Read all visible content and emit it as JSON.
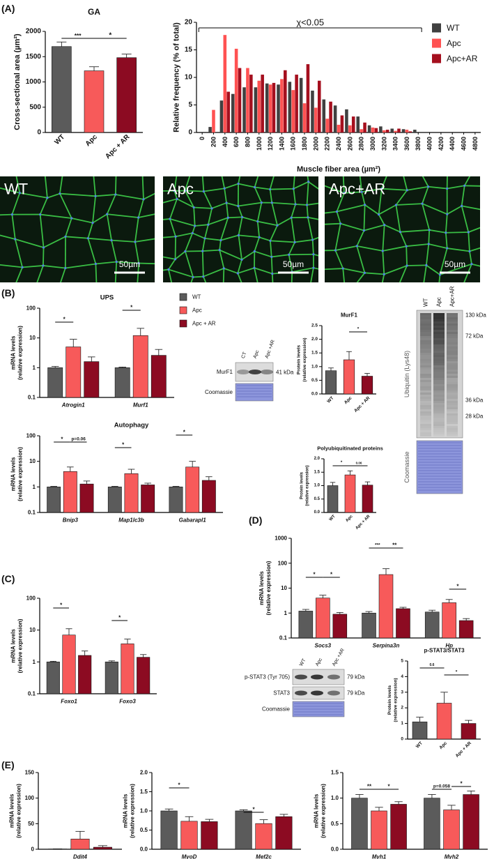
{
  "figure": {
    "panels": [
      "(A)",
      "(B)",
      "(C)",
      "(D)",
      "(E)"
    ],
    "images": [
      {
        "label": "WT",
        "scale": "50µm"
      },
      {
        "label": "Apc",
        "scale": "50µm"
      },
      {
        "label": "Apc+AR",
        "scale": "50µm"
      }
    ],
    "blots": [
      {
        "lanes": [
          "CT",
          "Apc",
          "Apc +AR"
        ],
        "rows": [
          "MurF1",
          "Coomassie"
        ],
        "sizes": [
          "41 kDa"
        ]
      },
      {
        "lanes": [
          "WT",
          "Apc",
          "Apc+AR"
        ],
        "rows": [
          "Ubiquitin (Lys48)",
          "Coomassie"
        ],
        "sizes": [
          "130 kDa",
          "72 kDa",
          "36 kDa",
          "28 kDa"
        ]
      },
      {
        "lanes": [
          "WT",
          "Apc",
          "Apc +AR"
        ],
        "rows": [
          "p-STAT3 (Tyr 705)",
          "STAT3",
          "Coomassie"
        ],
        "sizes": [
          "79 kDa",
          "79 kDa"
        ]
      }
    ]
  },
  "chart_data": [
    {
      "type": "bar",
      "title": "GA",
      "ylabel": "Cross-sectional area (µm²)",
      "categories": [
        "WT",
        "Apc",
        "Apc + AR"
      ],
      "values": [
        1700,
        1220,
        1480
      ],
      "errors": [
        90,
        80,
        70
      ],
      "colors": [
        "#5b5b5b",
        "#f75a5a",
        "#8c0b22"
      ],
      "ylim": [
        0,
        2000
      ],
      "yticks": [
        0,
        500,
        1000,
        1500,
        2000
      ],
      "annotations": [
        "***",
        "*"
      ]
    },
    {
      "type": "bar",
      "ylabel": "Relative frequency (% of total)",
      "xlabel": "Muscle fiber area (µm²)",
      "categories": [
        "0",
        "200",
        "400",
        "600",
        "800",
        "1000",
        "1200",
        "1400",
        "1600",
        "1800",
        "2000",
        "2200",
        "2400",
        "2600",
        "2800",
        "3000",
        "3200",
        "3400",
        "3600",
        "3800",
        "4000",
        "4200",
        "4400",
        "4600",
        "4800"
      ],
      "series": [
        {
          "name": "WT",
          "color": "#404040",
          "values": [
            0,
            1,
            5.8,
            7,
            8.2,
            8.2,
            8.9,
            8.7,
            9.2,
            9.9,
            7.6,
            6,
            4.9,
            4.2,
            2.9,
            1.3,
            1.1,
            0.7,
            0.6,
            0.5,
            0,
            0,
            0,
            0,
            0
          ]
        },
        {
          "name": "Apc",
          "color": "#ff5252",
          "values": [
            0,
            4.1,
            17.7,
            15.2,
            11.7,
            9.4,
            8.7,
            9.7,
            7.7,
            5.3,
            4.5,
            2.5,
            1.4,
            1.3,
            0.6,
            0.9,
            0.4,
            0.3,
            0.5,
            0,
            0,
            0,
            0,
            0,
            0
          ]
        },
        {
          "name": "Apc+AR",
          "color": "#a50f1e",
          "values": [
            0,
            0,
            7.4,
            11.7,
            10.5,
            10.5,
            9,
            11.3,
            10.5,
            12.4,
            9.4,
            5.6,
            3.1,
            2.9,
            1.8,
            0.8,
            0.5,
            0.7,
            0.2,
            0,
            0,
            0,
            0,
            0,
            0
          ]
        }
      ],
      "ylim": [
        0,
        20
      ],
      "yticks": [
        0,
        5,
        10,
        15,
        20
      ],
      "legend": "top-right",
      "annotations": [
        "χ<0.05"
      ]
    },
    {
      "type": "bar",
      "title": "UPS",
      "ylabel": [
        "mRNA levels",
        "(relative expression)"
      ],
      "categories": [
        "Atrogin1",
        "Murf1"
      ],
      "series": [
        {
          "name": "WT",
          "color": "#5b5b5b",
          "values": [
            1,
            1
          ],
          "errors": [
            0.1,
            0.05
          ]
        },
        {
          "name": "Apc",
          "color": "#f75a5a",
          "values": [
            5,
            12
          ],
          "errors": [
            4,
            9
          ]
        },
        {
          "name": "Apc + AR",
          "color": "#8c0b22",
          "values": [
            1.6,
            2.6
          ],
          "errors": [
            0.7,
            1.5
          ]
        }
      ],
      "log": true,
      "ylim": [
        0.1,
        100
      ],
      "yticks": [
        0.1,
        1,
        10,
        100
      ],
      "legend": "top-right",
      "annotations": [
        "*",
        "*"
      ]
    },
    {
      "type": "bar",
      "title": "MurF1",
      "ylabel": [
        "Protein levels",
        "(relative expression)"
      ],
      "categories": [
        "WT",
        "Apc",
        "Apc + AR"
      ],
      "values": [
        0.85,
        1.25,
        0.65
      ],
      "errors": [
        0.1,
        0.3,
        0.1
      ],
      "colors": [
        "#5b5b5b",
        "#f75a5a",
        "#8c0b22"
      ],
      "ylim": [
        0,
        2.5
      ],
      "yticks": [
        {
          "value": 0,
          "label": "0.0"
        },
        {
          "value": 0.5,
          "label": "0.5"
        },
        {
          "value": 1,
          "label": "1.0"
        },
        {
          "value": 1.5,
          "label": "1.5"
        },
        {
          "value": 2,
          "label": "2.0"
        },
        {
          "value": 2.5,
          "label": "2.5"
        }
      ],
      "annotations": [
        "*"
      ]
    },
    {
      "type": "bar",
      "title": "Autophagy",
      "ylabel": [
        "mRNA levels",
        "(relative expression)"
      ],
      "categories": [
        "Bnip3",
        "Map1lc3b",
        "Gabarapl1"
      ],
      "series": [
        {
          "color": "#5b5b5b",
          "values": [
            1,
            1,
            1
          ],
          "errors": [
            0.05,
            0.05,
            0.05
          ]
        },
        {
          "color": "#f75a5a",
          "values": [
            4,
            3.3,
            6
          ],
          "errors": [
            2,
            1.6,
            4
          ]
        },
        {
          "color": "#8c0b22",
          "values": [
            1.3,
            1.2,
            1.8
          ],
          "errors": [
            0.4,
            0.2,
            0.7
          ]
        }
      ],
      "log": true,
      "ylim": [
        0.1,
        100
      ],
      "yticks": [
        0.1,
        1,
        10,
        100
      ],
      "annotations": [
        "*",
        "p=0.06",
        "*",
        "*"
      ]
    },
    {
      "type": "bar",
      "title": "Polyubiquitinated proteins",
      "ylabel": [
        "Protein levels",
        "(relative expression)"
      ],
      "categories": [
        "WT",
        "Apc",
        "Apc + AR"
      ],
      "values": [
        1,
        1.4,
        1.02
      ],
      "errors": [
        0.12,
        0.15,
        0.12
      ],
      "colors": [
        "#5b5b5b",
        "#f75a5a",
        "#8c0b22"
      ],
      "ylim": [
        0,
        2
      ],
      "yticks": [
        {
          "value": 0,
          "label": "0.0"
        },
        {
          "value": 0.5,
          "label": "0.5"
        },
        {
          "value": 1,
          "label": "1.0"
        },
        {
          "value": 1.5,
          "label": "1.5"
        },
        {
          "value": 2,
          "label": "2.0"
        }
      ],
      "annotations": [
        "*",
        "0.06"
      ]
    },
    {
      "type": "bar",
      "ylabel": [
        "mRNA levels",
        "(relative expression)"
      ],
      "categories": [
        "Foxo1",
        "Foxo3"
      ],
      "series": [
        {
          "color": "#5b5b5b",
          "values": [
            1,
            1
          ],
          "errors": [
            0.05,
            0.08
          ]
        },
        {
          "color": "#f75a5a",
          "values": [
            7,
            3.7
          ],
          "errors": [
            4,
            1.5
          ]
        },
        {
          "color": "#8c0b22",
          "values": [
            1.6,
            1.4
          ],
          "errors": [
            0.6,
            0.3
          ]
        }
      ],
      "log": true,
      "ylim": [
        0.1,
        100
      ],
      "yticks": [
        0.1,
        1,
        10,
        100
      ],
      "annotations": [
        "*",
        "*"
      ]
    },
    {
      "type": "bar",
      "ylabel": [
        "mRNA levels",
        "(relative expression)"
      ],
      "categories": [
        "Socs3",
        "Serpina3n",
        "Hp"
      ],
      "series": [
        {
          "color": "#5b5b5b",
          "values": [
            1.2,
            1,
            1.1
          ],
          "errors": [
            0.2,
            0.15,
            0.2
          ]
        },
        {
          "color": "#f75a5a",
          "values": [
            4,
            35,
            2.6
          ],
          "errors": [
            1.2,
            25,
            0.9
          ]
        },
        {
          "color": "#8c0b22",
          "values": [
            0.9,
            1.5,
            0.5
          ],
          "errors": [
            0.15,
            0.2,
            0.1
          ]
        }
      ],
      "log": true,
      "ylim": [
        0.1,
        1000
      ],
      "yticks": [
        0.1,
        1,
        10,
        100,
        1000
      ],
      "annotations": [
        "*",
        "*",
        "***",
        "**",
        "*"
      ]
    },
    {
      "type": "bar",
      "title": "p-STAT3/STAT3",
      "ylabel": [
        "Protein levels",
        "(relative expression)"
      ],
      "categories": [
        "WT",
        "Apc",
        "Apc + AR"
      ],
      "values": [
        1.1,
        2.3,
        1
      ],
      "errors": [
        0.3,
        0.7,
        0.2
      ],
      "colors": [
        "#5b5b5b",
        "#f75a5a",
        "#8c0b22"
      ],
      "ylim": [
        0,
        5
      ],
      "yticks": [
        0,
        1,
        2,
        3,
        4,
        5
      ],
      "annotations": [
        "0.6",
        "*"
      ]
    },
    {
      "type": "bar",
      "ylabel": [
        "mRNA levels",
        "(relative expression)"
      ],
      "categories": [
        "Ddit4"
      ],
      "series": [
        {
          "color": "#5b5b5b",
          "values": [
            0.5
          ],
          "errors": [
            0.2
          ]
        },
        {
          "color": "#f75a5a",
          "values": [
            20
          ],
          "errors": [
            15
          ]
        },
        {
          "color": "#8c0b22",
          "values": [
            4
          ],
          "errors": [
            3
          ]
        }
      ],
      "ylim": [
        0,
        150
      ],
      "yticks": [
        0,
        50,
        100,
        150
      ],
      "annotations": []
    },
    {
      "type": "bar",
      "ylabel": [
        "mRNA levels",
        "(relative expression)"
      ],
      "categories": [
        "MyoD",
        "Mef2c"
      ],
      "series": [
        {
          "color": "#5b5b5b",
          "values": [
            1,
            1
          ],
          "errors": [
            0.05,
            0.03
          ]
        },
        {
          "color": "#f75a5a",
          "values": [
            0.73,
            0.67
          ],
          "errors": [
            0.12,
            0.1
          ]
        },
        {
          "color": "#8c0b22",
          "values": [
            0.72,
            0.85
          ],
          "errors": [
            0.06,
            0.06
          ]
        }
      ],
      "ylim": [
        0,
        2
      ],
      "yticks": [
        {
          "value": 0,
          "label": "0.0"
        },
        {
          "value": 0.5,
          "label": "0.5"
        },
        {
          "value": 1,
          "label": "1.0"
        },
        {
          "value": 1.5,
          "label": "1.5"
        },
        {
          "value": 2,
          "label": "2.0"
        }
      ],
      "annotations": [
        "*",
        "*"
      ]
    },
    {
      "type": "bar",
      "ylabel": [
        "mRNA levels",
        "(relative expression)"
      ],
      "categories": [
        "Myh1",
        "Myh2"
      ],
      "series": [
        {
          "color": "#5b5b5b",
          "values": [
            1,
            1
          ],
          "errors": [
            0.07,
            0.07
          ]
        },
        {
          "color": "#f75a5a",
          "values": [
            0.75,
            0.77
          ],
          "errors": [
            0.07,
            0.09
          ]
        },
        {
          "color": "#8c0b22",
          "values": [
            0.88,
            1.07
          ],
          "errors": [
            0.05,
            0.07
          ]
        }
      ],
      "ylim": [
        0,
        1.5
      ],
      "yticks": [
        {
          "value": 0,
          "label": "0.0"
        },
        {
          "value": 0.5,
          "label": "0.5"
        },
        {
          "value": 1,
          "label": "1.0"
        },
        {
          "value": 1.5,
          "label": "1.5"
        }
      ],
      "annotations": [
        "**",
        "*",
        "p=0.058",
        "*"
      ]
    }
  ]
}
